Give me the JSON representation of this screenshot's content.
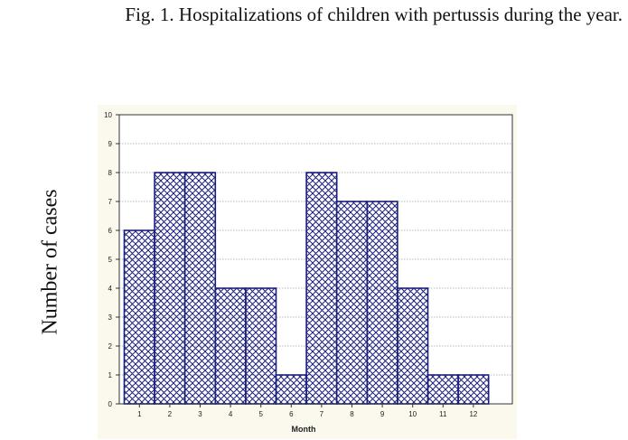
{
  "caption": "Fig. 1. Hospitalizations of children with pertussis during the year.",
  "chart_data": {
    "type": "bar",
    "title": "",
    "xlabel": "Month",
    "ylabel": "Number of cases",
    "categories": [
      "1",
      "2",
      "3",
      "4",
      "5",
      "6",
      "7",
      "8",
      "9",
      "10",
      "11",
      "12"
    ],
    "values": [
      6,
      8,
      8,
      4,
      4,
      1,
      8,
      7,
      7,
      4,
      1,
      1
    ],
    "ylim": [
      0,
      10
    ],
    "yticks": [
      "0",
      "1",
      "2",
      "3",
      "4",
      "5",
      "6",
      "7",
      "8",
      "9",
      "10"
    ],
    "grid": true,
    "bar_fill": "crosshatch",
    "colors": {
      "bar_stroke": "#1a1f7a",
      "hatch": "#1a1f7a",
      "grid": "#b8b8b8",
      "panel": "#fbf8ee"
    }
  }
}
